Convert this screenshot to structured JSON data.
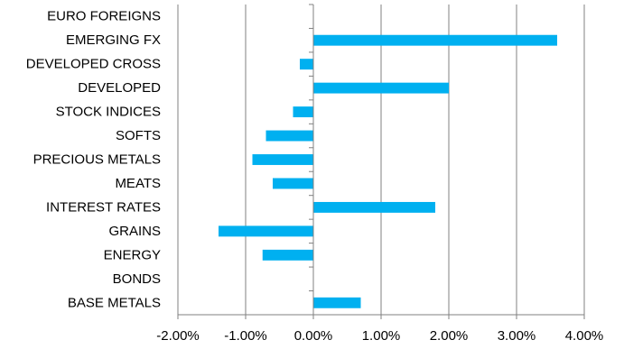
{
  "chart_data": {
    "type": "bar",
    "orientation": "horizontal",
    "title": "",
    "xlabel": "",
    "ylabel": "",
    "categories": [
      "EURO FOREIGNS",
      "EMERGING FX",
      "DEVELOPED CROSS",
      "DEVELOPED",
      "STOCK INDICES",
      "SOFTS",
      "PRECIOUS METALS",
      "MEATS",
      "INTEREST RATES",
      "GRAINS",
      "ENERGY",
      "BONDS",
      "BASE METALS"
    ],
    "values": [
      0.0,
      3.6,
      -0.2,
      2.0,
      -0.3,
      -0.7,
      -0.9,
      -0.6,
      1.8,
      -1.4,
      -0.75,
      0.0,
      0.7
    ],
    "xlim": [
      -2,
      4
    ],
    "xticks": [
      -2,
      -1,
      0,
      1,
      2,
      3,
      4
    ],
    "xtick_labels": [
      "-2.00%",
      "-1.00%",
      "0.00%",
      "1.00%",
      "2.00%",
      "3.00%",
      "4.00%"
    ],
    "grid": "vertical",
    "legend": "none",
    "bar_color": "#00B0F0",
    "grid_color": "#808080"
  }
}
